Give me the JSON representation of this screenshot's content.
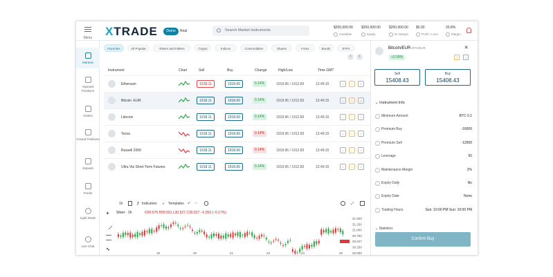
{
  "header": {
    "menu_label": "Menu",
    "logo_x": "X",
    "logo_rest": "TRADE",
    "demo_label": "Demo",
    "real_label": "Real",
    "search_placeholder": "Search Market Instruments",
    "stats": [
      {
        "value": "$200,000.00",
        "label": "Available"
      },
      {
        "value": "$200,000.00",
        "label": "Equity"
      },
      {
        "value": "$200,000.00",
        "label": "M. Margin"
      },
      {
        "value": "$0.00",
        "label": "Profit / Loss"
      },
      {
        "value": "20.8%",
        "label": "Margin"
      }
    ]
  },
  "nav": [
    {
      "label": "Markets"
    },
    {
      "label": "Opened Positions"
    },
    {
      "label": "Orders"
    },
    {
      "label": "Closed Positions"
    },
    {
      "label": "Deposit"
    },
    {
      "label": "Funds"
    },
    {
      "label": "Light Mode"
    },
    {
      "label": "Live Chat"
    }
  ],
  "filters": [
    "Favorites",
    "All Popular",
    "Risers and Fallers",
    "Crypto",
    "Indices",
    "Commodities",
    "Shares",
    "Forex",
    "Bonds",
    "ETFs"
  ],
  "table": {
    "headers": {
      "instrument": "Instrument",
      "chart": "Chart",
      "sell": "Sell",
      "buy": "Buy",
      "change": "Change",
      "highlow": "High/Low",
      "time": "Time GMT"
    },
    "rows": [
      {
        "name": "Ethereum",
        "sell": "1918.11",
        "buy": "1918.60",
        "change": "0.14%",
        "highlow": "1918.96 / 1912.83",
        "time": "13:49:15",
        "trend": "up",
        "sell_style": "red"
      },
      {
        "name": "Bitcoin -EUR",
        "sell": "1918.11",
        "buy": "1918.60",
        "change": "0.14%",
        "highlow": "1918.96 / 1912.83",
        "time": "13:49:15",
        "trend": "up",
        "sell_style": "blue"
      },
      {
        "name": "Litecoin",
        "sell": "1918.11",
        "buy": "1918.60",
        "change": "0.14%",
        "highlow": "1918.96 / 1912.83",
        "time": "13:49:15",
        "trend": "up",
        "sell_style": "blue"
      },
      {
        "name": "Tezos",
        "sell": "1918.11",
        "buy": "1918.60",
        "change": "0.14%",
        "highlow": "1918.96 / 1912.83",
        "time": "13:49:15",
        "trend": "down",
        "sell_style": "blue"
      },
      {
        "name": "Russell 2000",
        "sell": "1918.11",
        "buy": "1918.60",
        "change": "0.14%",
        "highlow": "1918.96 / 1912.83",
        "time": "13:49:15",
        "trend": "down",
        "sell_style": "blue"
      },
      {
        "name": "Ultra Via Short-Term Futures",
        "sell": "1918.11",
        "buy": "1918.60",
        "change": "0.14%",
        "highlow": "1918.96 / 1912.83",
        "time": "13:49:15",
        "trend": "up",
        "sell_style": "blue"
      }
    ]
  },
  "chart": {
    "interval": "1h",
    "indicators_label": "Indicators",
    "templates_label": "Templates",
    "symbol": "Silver · 1h",
    "ohlc": "O30.576 H30.591 L30.527 C30.527 −0.053 (−0.17%)",
    "y_ticks": [
      "31.500",
      "31.250",
      "31.000",
      "30.750",
      "30.527",
      "30.250",
      "30.000"
    ],
    "x_ticks": [
      "19",
      "20",
      "21",
      "22",
      "24",
      "26"
    ]
  },
  "panel": {
    "title": "Bitcoin/EUR",
    "subtitle": "BTC/EUR",
    "change": "+2.59%",
    "sell_label": "Sell",
    "sell_value": "15408.43",
    "buy_label": "Buy",
    "buy_value": "15408.43",
    "info_header": "Instrument Info",
    "info": [
      {
        "label": "Minimum Amount",
        "value": "BTC 0.1"
      },
      {
        "label": "Premium Buy",
        "value": "-16000"
      },
      {
        "label": "Premium Sell",
        "value": "-12000"
      },
      {
        "label": "Leverage",
        "value": "50"
      },
      {
        "label": "Maintenance Margin",
        "value": "2%"
      },
      {
        "label": "Expiry Daily",
        "value": "No"
      },
      {
        "label": "Expiry Date",
        "value": "None"
      },
      {
        "label": "Trading Hours",
        "value": "Sun: 10:00 PM   Sun: 10:00 PM"
      }
    ],
    "stats_header": "Statistics",
    "confirm_label": "Confirm Buy"
  }
}
